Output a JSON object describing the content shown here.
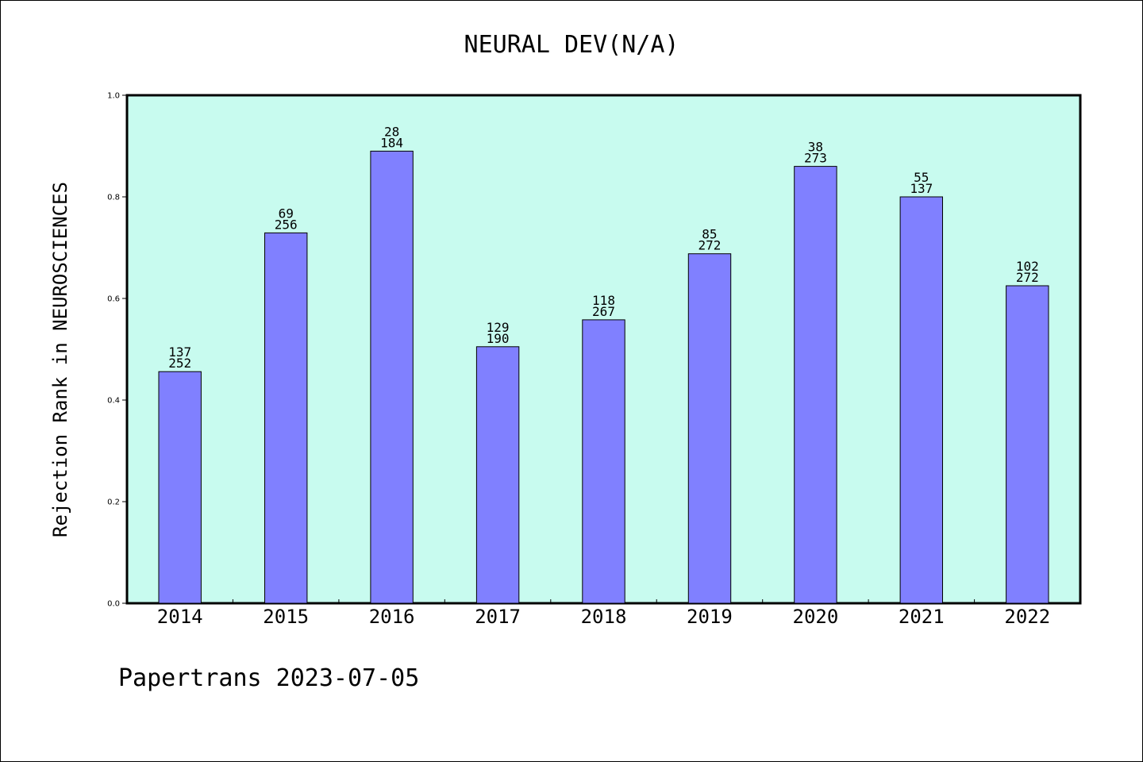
{
  "chart_data": {
    "type": "bar",
    "title": "NEURAL DEV(N/A)",
    "ylabel": "Rejection Rank in NEUROSCIENCES",
    "xlabel": "",
    "ylim": [
      0.0,
      1.0
    ],
    "yticks": [
      "0.0",
      "0.2",
      "0.4",
      "0.6",
      "0.8",
      "1.0"
    ],
    "categories": [
      "2014",
      "2015",
      "2016",
      "2017",
      "2018",
      "2019",
      "2020",
      "2021",
      "2022"
    ],
    "values": [
      0.456,
      0.729,
      0.89,
      0.505,
      0.558,
      0.688,
      0.86,
      0.8,
      0.625
    ],
    "bar_labels_top": [
      "137",
      "69",
      "28",
      "129",
      "118",
      "85",
      "38",
      "55",
      "102"
    ],
    "bar_labels_bottom": [
      "252",
      "256",
      "184",
      "190",
      "267",
      "272",
      "273",
      "137",
      "272"
    ],
    "grid": false,
    "colors": {
      "plot_background": "#c8fbef",
      "bar_fill": "#8080ff",
      "bar_edge": "#000000"
    }
  },
  "footer": "Papertrans 2023-07-05"
}
